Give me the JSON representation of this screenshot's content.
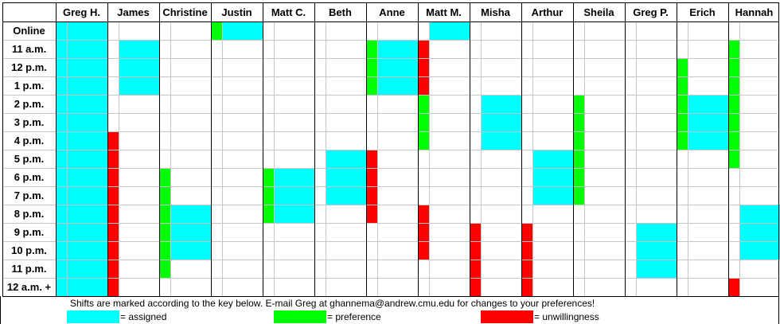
{
  "colors": {
    "assigned": "#00ffff",
    "preference": "#00ff00",
    "unwillingness": "#ff0000"
  },
  "columns": [
    "Greg H.",
    "James",
    "Christine",
    "Justin",
    "Matt C.",
    "Beth",
    "Anne",
    "Matt M.",
    "Misha",
    "Arthur",
    "Sheila",
    "Greg P.",
    "Erich",
    "Hannah"
  ],
  "rows": [
    "Online",
    "11 a.m.",
    "12 p.m.",
    "1 p.m.",
    "2 p.m.",
    "3 p.m.",
    "4 p.m.",
    "5 p.m.",
    "6 p.m.",
    "7 p.m.",
    "8 p.m.",
    "9 p.m.",
    "10 p.m.",
    "11 p.m.",
    "12 a.m. +"
  ],
  "schedule": [
    {
      "person": "Greg H.",
      "assigned": [
        0,
        1,
        2,
        3,
        4,
        5,
        6,
        7,
        8,
        9,
        10,
        11,
        12,
        13,
        14
      ],
      "preference": [],
      "unwillingness": []
    },
    {
      "person": "James",
      "assigned": [
        1,
        2,
        3
      ],
      "preference": [],
      "unwillingness": [
        6,
        7,
        8,
        9,
        10,
        11,
        12,
        13,
        14
      ]
    },
    {
      "person": "Christine",
      "assigned": [
        10,
        11,
        12
      ],
      "preference": [
        8,
        9,
        10,
        11,
        12,
        13
      ],
      "unwillingness": []
    },
    {
      "person": "Justin",
      "assigned": [
        0
      ],
      "preference": [
        0
      ],
      "unwillingness": []
    },
    {
      "person": "Matt C.",
      "assigned": [
        8,
        9,
        10
      ],
      "preference": [
        8,
        9,
        10
      ],
      "unwillingness": []
    },
    {
      "person": "Beth",
      "assigned": [
        7,
        8,
        9
      ],
      "preference": [],
      "unwillingness": []
    },
    {
      "person": "Anne",
      "assigned": [
        1,
        2,
        3
      ],
      "preference": [
        1,
        2,
        3
      ],
      "unwillingness": [
        7,
        8,
        9,
        10
      ]
    },
    {
      "person": "Matt M.",
      "assigned": [
        0
      ],
      "preference": [
        4,
        5,
        6
      ],
      "unwillingness": [
        1,
        2,
        3,
        10,
        11,
        12
      ]
    },
    {
      "person": "Misha",
      "assigned": [
        4,
        5,
        6
      ],
      "preference": [],
      "unwillingness": [
        11,
        12,
        13,
        14
      ]
    },
    {
      "person": "Arthur",
      "assigned": [
        7,
        8,
        9
      ],
      "preference": [],
      "unwillingness": [
        11,
        12,
        13,
        14
      ]
    },
    {
      "person": "Sheila",
      "assigned": [],
      "preference": [
        4,
        5,
        6,
        7,
        8,
        9
      ],
      "unwillingness": []
    },
    {
      "person": "Greg P.",
      "assigned": [
        11,
        12,
        13
      ],
      "preference": [],
      "unwillingness": []
    },
    {
      "person": "Erich",
      "assigned": [
        4,
        5,
        6
      ],
      "preference": [
        2,
        3,
        4,
        5,
        6
      ],
      "unwillingness": []
    },
    {
      "person": "Hannah",
      "assigned": [
        10,
        11,
        12
      ],
      "preference": [
        1,
        2,
        3,
        4,
        5,
        6,
        7
      ],
      "unwillingness": [
        14
      ]
    }
  ],
  "footer": {
    "note": "Shifts are marked according to the key below.  E-mail Greg at ghannema@andrew.cmu.edu for changes to your preferences!",
    "legend": [
      {
        "key": "assigned",
        "label": "= assigned"
      },
      {
        "key": "preference",
        "label": "= preference"
      },
      {
        "key": "unwillingness",
        "label": "= unwillingness"
      }
    ]
  }
}
